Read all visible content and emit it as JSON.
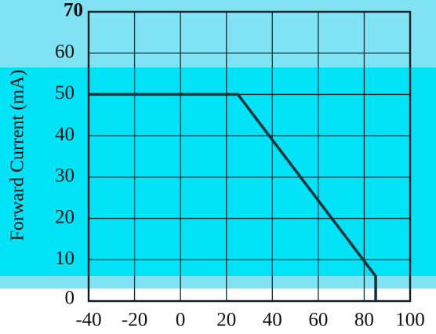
{
  "chart_data": {
    "type": "line",
    "xlabel": "",
    "ylabel": "Forward Current (mA)",
    "xlim": [
      -40,
      100
    ],
    "ylim": [
      0,
      70
    ],
    "xticks": [
      "-40",
      "-20",
      "0",
      "20",
      "40",
      "60",
      "80",
      "100"
    ],
    "yticks": [
      "0",
      "10",
      "20",
      "30",
      "40",
      "50",
      "60",
      "70"
    ],
    "grid": true,
    "series": [
      {
        "x": [
          -40,
          25,
          85,
          85
        ],
        "y": [
          50,
          50,
          6,
          0
        ]
      }
    ]
  },
  "colors": {
    "band_top": "#7fe3f3",
    "band_middle": "#00e2f6",
    "band_low": "#7fe3f3",
    "line": "#123139",
    "grid": "#102a32"
  }
}
